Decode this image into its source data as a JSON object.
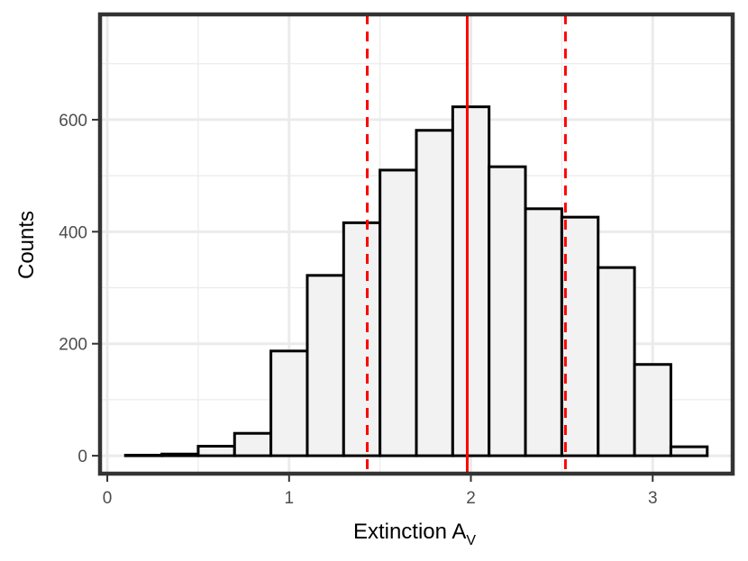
{
  "chart_data": {
    "type": "bar",
    "subtype": "histogram",
    "xlabel": "Extinction A",
    "xlabel_subscript": "V",
    "ylabel": "Counts",
    "xlim": [
      -0.04,
      3.44
    ],
    "ylim": [
      -32,
      788
    ],
    "x_ticks": [
      0,
      1,
      2,
      3
    ],
    "y_ticks": [
      0,
      200,
      400,
      600
    ],
    "x_tick_labels": [
      "0",
      "1",
      "2",
      "3"
    ],
    "y_tick_labels": [
      "0",
      "200",
      "400",
      "600"
    ],
    "x_minor_ticks": [
      0.5,
      1.5,
      2.5
    ],
    "y_minor_ticks": [
      100,
      300,
      500,
      700
    ],
    "grid": true,
    "bin_width": 0.2,
    "bins": [
      {
        "x0": 0.1,
        "x1": 0.3,
        "count": 1
      },
      {
        "x0": 0.3,
        "x1": 0.5,
        "count": 3
      },
      {
        "x0": 0.5,
        "x1": 0.7,
        "count": 17
      },
      {
        "x0": 0.7,
        "x1": 0.9,
        "count": 40
      },
      {
        "x0": 0.9,
        "x1": 1.1,
        "count": 187
      },
      {
        "x0": 1.1,
        "x1": 1.3,
        "count": 322
      },
      {
        "x0": 1.3,
        "x1": 1.5,
        "count": 416
      },
      {
        "x0": 1.5,
        "x1": 1.7,
        "count": 510
      },
      {
        "x0": 1.7,
        "x1": 1.9,
        "count": 581
      },
      {
        "x0": 1.9,
        "x1": 2.1,
        "count": 623
      },
      {
        "x0": 2.1,
        "x1": 2.3,
        "count": 516
      },
      {
        "x0": 2.3,
        "x1": 2.5,
        "count": 441
      },
      {
        "x0": 2.5,
        "x1": 2.7,
        "count": 426
      },
      {
        "x0": 2.7,
        "x1": 2.9,
        "count": 336
      },
      {
        "x0": 2.9,
        "x1": 3.1,
        "count": 163
      },
      {
        "x0": 3.1,
        "x1": 3.3,
        "count": 16
      }
    ],
    "vlines": [
      {
        "x": 1.98,
        "style": "solid",
        "color": "#ff0000"
      },
      {
        "x": 1.43,
        "style": "dashed",
        "color": "#ff0000"
      },
      {
        "x": 2.52,
        "style": "dashed",
        "color": "#ff0000"
      }
    ],
    "bar_fill": "#f2f2f2",
    "bar_stroke": "#000000",
    "panel_border": "#333333",
    "grid_color": "#ebebeb"
  }
}
